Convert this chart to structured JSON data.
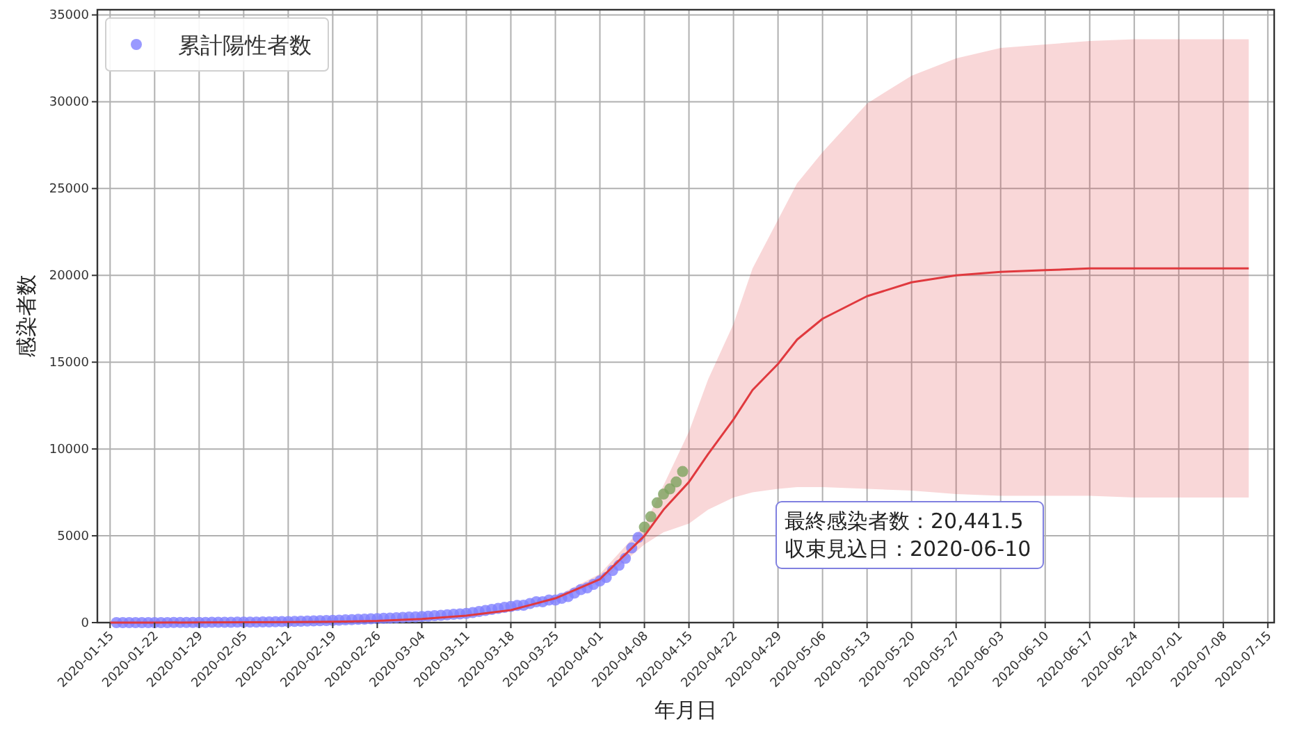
{
  "chart_data": {
    "type": "scatter",
    "xlabel": "年月日",
    "ylabel": "感染者数",
    "xlim": [
      "2020-01-13",
      "2020-07-16"
    ],
    "ylim": [
      0,
      35300
    ],
    "xticks": [
      "2020-01-15",
      "2020-01-22",
      "2020-01-29",
      "2020-02-05",
      "2020-02-12",
      "2020-02-19",
      "2020-02-26",
      "2020-03-04",
      "2020-03-11",
      "2020-03-18",
      "2020-03-25",
      "2020-04-01",
      "2020-04-08",
      "2020-04-15",
      "2020-04-22",
      "2020-04-29",
      "2020-05-06",
      "2020-05-13",
      "2020-05-20",
      "2020-05-27",
      "2020-06-03",
      "2020-06-10",
      "2020-06-17",
      "2020-06-24",
      "2020-07-01",
      "2020-07-08",
      "2020-07-15"
    ],
    "yticks": [
      0,
      5000,
      10000,
      15000,
      20000,
      25000,
      30000,
      35000
    ],
    "grid": true,
    "legend": "top left",
    "marker": "circle",
    "annotations": [
      "最終感染者数：20,441.5",
      "収束見込日：2020-06-10"
    ],
    "series": [
      {
        "name": "累計陽性者数",
        "color": "#8080ff",
        "x": [
          "2020-01-16",
          "2020-01-17",
          "2020-01-18",
          "2020-01-19",
          "2020-01-20",
          "2020-01-21",
          "2020-01-22",
          "2020-01-23",
          "2020-01-24",
          "2020-01-25",
          "2020-01-26",
          "2020-01-27",
          "2020-01-28",
          "2020-01-29",
          "2020-01-30",
          "2020-01-31",
          "2020-02-01",
          "2020-02-02",
          "2020-02-03",
          "2020-02-04",
          "2020-02-05",
          "2020-02-06",
          "2020-02-07",
          "2020-02-08",
          "2020-02-09",
          "2020-02-10",
          "2020-02-11",
          "2020-02-12",
          "2020-02-13",
          "2020-02-14",
          "2020-02-15",
          "2020-02-16",
          "2020-02-17",
          "2020-02-18",
          "2020-02-19",
          "2020-02-20",
          "2020-02-21",
          "2020-02-22",
          "2020-02-23",
          "2020-02-24",
          "2020-02-25",
          "2020-02-26",
          "2020-02-27",
          "2020-02-28",
          "2020-02-29",
          "2020-03-01",
          "2020-03-02",
          "2020-03-03",
          "2020-03-04",
          "2020-03-05",
          "2020-03-06",
          "2020-03-07",
          "2020-03-08",
          "2020-03-09",
          "2020-03-10",
          "2020-03-11",
          "2020-03-12",
          "2020-03-13",
          "2020-03-14",
          "2020-03-15",
          "2020-03-16",
          "2020-03-17",
          "2020-03-18",
          "2020-03-19",
          "2020-03-20",
          "2020-03-21",
          "2020-03-22",
          "2020-03-23",
          "2020-03-24",
          "2020-03-25",
          "2020-03-26",
          "2020-03-27",
          "2020-03-28",
          "2020-03-29",
          "2020-03-30",
          "2020-03-31",
          "2020-04-01",
          "2020-04-02",
          "2020-04-03",
          "2020-04-04",
          "2020-04-05",
          "2020-04-06",
          "2020-04-07"
        ],
        "values": [
          0,
          0,
          0,
          0,
          0,
          0,
          0,
          0,
          0,
          10,
          10,
          10,
          10,
          10,
          10,
          20,
          20,
          20,
          20,
          30,
          30,
          30,
          30,
          40,
          40,
          50,
          60,
          60,
          70,
          80,
          90,
          100,
          110,
          120,
          130,
          140,
          160,
          170,
          190,
          200,
          220,
          230,
          250,
          260,
          280,
          300,
          320,
          330,
          350,
          370,
          400,
          420,
          450,
          480,
          500,
          530,
          580,
          640,
          700,
          760,
          820,
          880,
          930,
          990,
          1000,
          1100,
          1200,
          1200,
          1300,
          1300,
          1400,
          1500,
          1700,
          1900,
          2000,
          2200,
          2400,
          2600,
          3000,
          3300,
          3700,
          4300,
          4900
        ]
      },
      {
        "color": "#7da35f",
        "x": [
          "2020-04-08",
          "2020-04-09",
          "2020-04-10",
          "2020-04-11",
          "2020-04-12",
          "2020-04-13",
          "2020-04-14"
        ],
        "values": [
          5500,
          6100,
          6900,
          7400,
          7700,
          8100,
          8700
        ]
      },
      {
        "type": "line",
        "marker": "none",
        "color": "#e0393e",
        "x": [
          "2020-01-15",
          "2020-01-22",
          "2020-01-29",
          "2020-02-05",
          "2020-02-12",
          "2020-02-19",
          "2020-02-26",
          "2020-03-04",
          "2020-03-11",
          "2020-03-18",
          "2020-03-25",
          "2020-04-01",
          "2020-04-08",
          "2020-04-11",
          "2020-04-15",
          "2020-04-18",
          "2020-04-22",
          "2020-04-25",
          "2020-04-29",
          "2020-05-02",
          "2020-05-06",
          "2020-05-13",
          "2020-05-20",
          "2020-05-27",
          "2020-06-03",
          "2020-06-10",
          "2020-06-17",
          "2020-06-24",
          "2020-07-01",
          "2020-07-08",
          "2020-07-12"
        ],
        "values": [
          0,
          0,
          10,
          20,
          30,
          50,
          100,
          210,
          400,
          720,
          1400,
          2500,
          5000,
          6500,
          8100,
          9700,
          11700,
          13400,
          14900,
          16300,
          17500,
          18800,
          19600,
          20000,
          20200,
          20300,
          20400,
          20400,
          20400,
          20400,
          20400
        ],
        "lower": [
          0,
          0,
          10,
          20,
          30,
          40,
          90,
          190,
          370,
          670,
          1300,
          2300,
          4500,
          5200,
          5700,
          6500,
          7200,
          7500,
          7700,
          7800,
          7800,
          7700,
          7600,
          7400,
          7300,
          7300,
          7300,
          7200,
          7200,
          7200,
          7200
        ],
        "upper": [
          0,
          0,
          10,
          20,
          30,
          60,
          110,
          230,
          430,
          770,
          1500,
          2800,
          5600,
          7900,
          11000,
          14000,
          17200,
          20400,
          23200,
          25300,
          27100,
          29900,
          31500,
          32500,
          33100,
          33300,
          33500,
          33600,
          33600,
          33600,
          33600
        ]
      }
    ]
  }
}
